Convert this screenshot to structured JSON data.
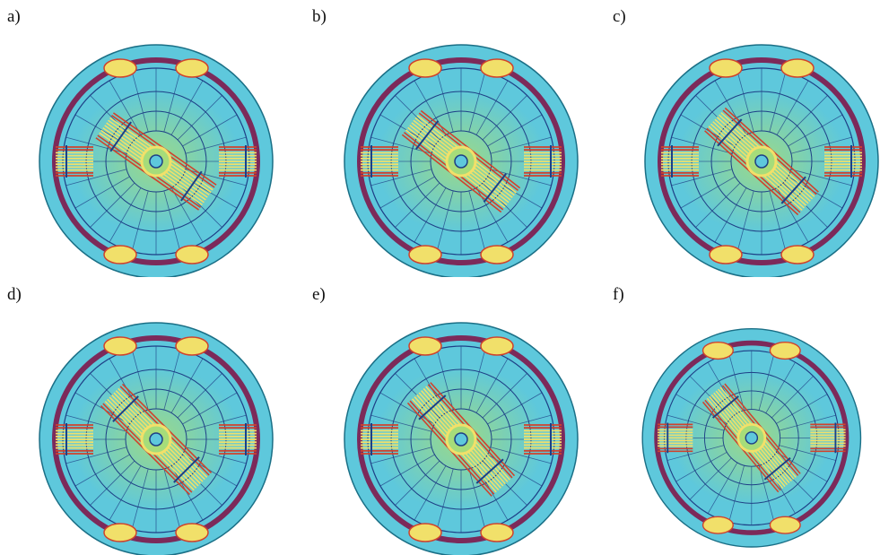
{
  "figure": {
    "panels": [
      {
        "label": "a)",
        "angle": 35
      },
      {
        "label": "b)",
        "angle": 38
      },
      {
        "label": "c)",
        "angle": 42
      },
      {
        "label": "d)",
        "angle": 45
      },
      {
        "label": "e)",
        "angle": 48
      },
      {
        "label": "f)",
        "angle": 50
      }
    ],
    "colors": {
      "background": "#ffffff",
      "outer_disc": "#5ec8dc",
      "disc_edge": "#1a6f86",
      "coil_ring": "#7c2a5a",
      "flux_yellow": "#f1e06a",
      "flux_red": "#d0422c",
      "flux_green": "#a6dc7a",
      "mesh_line": "#1e3f86"
    }
  }
}
